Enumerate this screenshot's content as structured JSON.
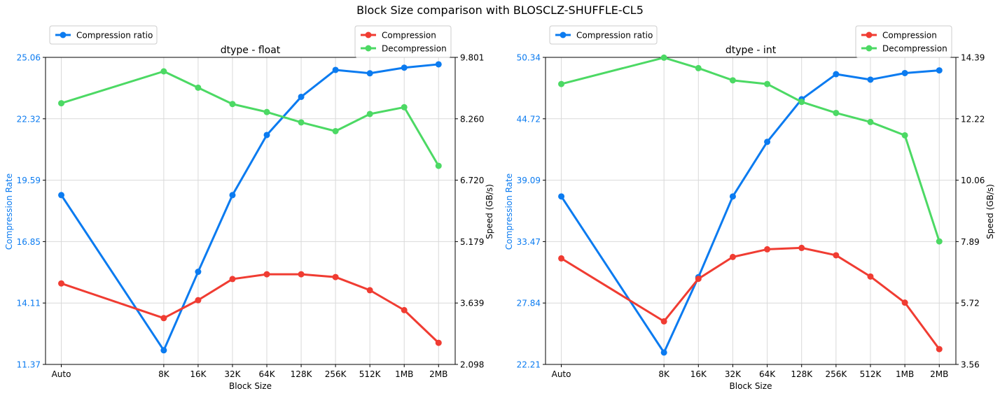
{
  "suptitle": "Block Size comparison with BLOSCLZ-SHUFFLE-CL5",
  "colors": {
    "compression_ratio": "#0b7bf0",
    "compression": "#f03c32",
    "decompression": "#4cd964",
    "left_axis_text": "#0b7bf0",
    "grid": "#d9d9d9"
  },
  "chart_data": [
    {
      "type": "line",
      "title": "dtype - float",
      "xlabel": "Block Size",
      "ylabel_left": "Compression Rate",
      "ylabel_right": "Speed (GB/s)",
      "categories": [
        "Auto",
        "8K",
        "16K",
        "32K",
        "64K",
        "128K",
        "256K",
        "512K",
        "1MB",
        "2MB"
      ],
      "left_ticks": [
        "11.37",
        "14.11",
        "16.85",
        "19.59",
        "22.32",
        "25.06"
      ],
      "right_ticks": [
        "2.098",
        "3.639",
        "5.179",
        "6.720",
        "8.260",
        "9.801"
      ],
      "ylim_left": [
        11.37,
        25.06
      ],
      "ylim_right": [
        2.098,
        9.801
      ],
      "legend_left": [
        "Compression ratio"
      ],
      "legend_right": [
        "Compression",
        "Decompression"
      ],
      "series": [
        {
          "name": "Compression ratio",
          "axis": "left",
          "values": [
            18.92,
            12.0,
            15.5,
            18.92,
            21.6,
            23.3,
            24.5,
            24.35,
            24.6,
            24.75
          ]
        },
        {
          "name": "Compression",
          "axis": "right",
          "values": [
            4.13,
            3.26,
            3.71,
            4.24,
            4.36,
            4.36,
            4.29,
            3.96,
            3.46,
            2.64
          ]
        },
        {
          "name": "Decompression",
          "axis": "right",
          "values": [
            8.65,
            9.45,
            9.04,
            8.63,
            8.43,
            8.17,
            7.95,
            8.38,
            8.55,
            7.08
          ]
        }
      ]
    },
    {
      "type": "line",
      "title": "dtype - int",
      "xlabel": "Block Size",
      "ylabel_left": "Compression Rate",
      "ylabel_right": "Speed (GB/s)",
      "categories": [
        "Auto",
        "8K",
        "16K",
        "32K",
        "64K",
        "128K",
        "256K",
        "512K",
        "1MB",
        "2MB"
      ],
      "left_ticks": [
        "22.21",
        "27.84",
        "33.47",
        "39.09",
        "44.72",
        "50.34"
      ],
      "right_ticks": [
        "3.56",
        "5.72",
        "7.89",
        "10.06",
        "12.22",
        "14.39"
      ],
      "ylim_left": [
        22.21,
        50.34
      ],
      "ylim_right": [
        3.56,
        14.39
      ],
      "legend_left": [
        "Compression ratio"
      ],
      "legend_right": [
        "Compression",
        "Decompression"
      ],
      "series": [
        {
          "name": "Compression ratio",
          "axis": "left",
          "values": [
            37.6,
            23.3,
            30.2,
            37.6,
            42.6,
            46.5,
            48.8,
            48.3,
            48.9,
            49.15
          ]
        },
        {
          "name": "Compression",
          "axis": "right",
          "values": [
            7.3,
            5.08,
            6.58,
            7.35,
            7.62,
            7.67,
            7.41,
            6.66,
            5.74,
            4.1
          ]
        },
        {
          "name": "Decompression",
          "axis": "right",
          "values": [
            13.45,
            14.38,
            14.01,
            13.58,
            13.45,
            12.82,
            12.43,
            12.11,
            11.64,
            7.9
          ]
        }
      ]
    }
  ]
}
